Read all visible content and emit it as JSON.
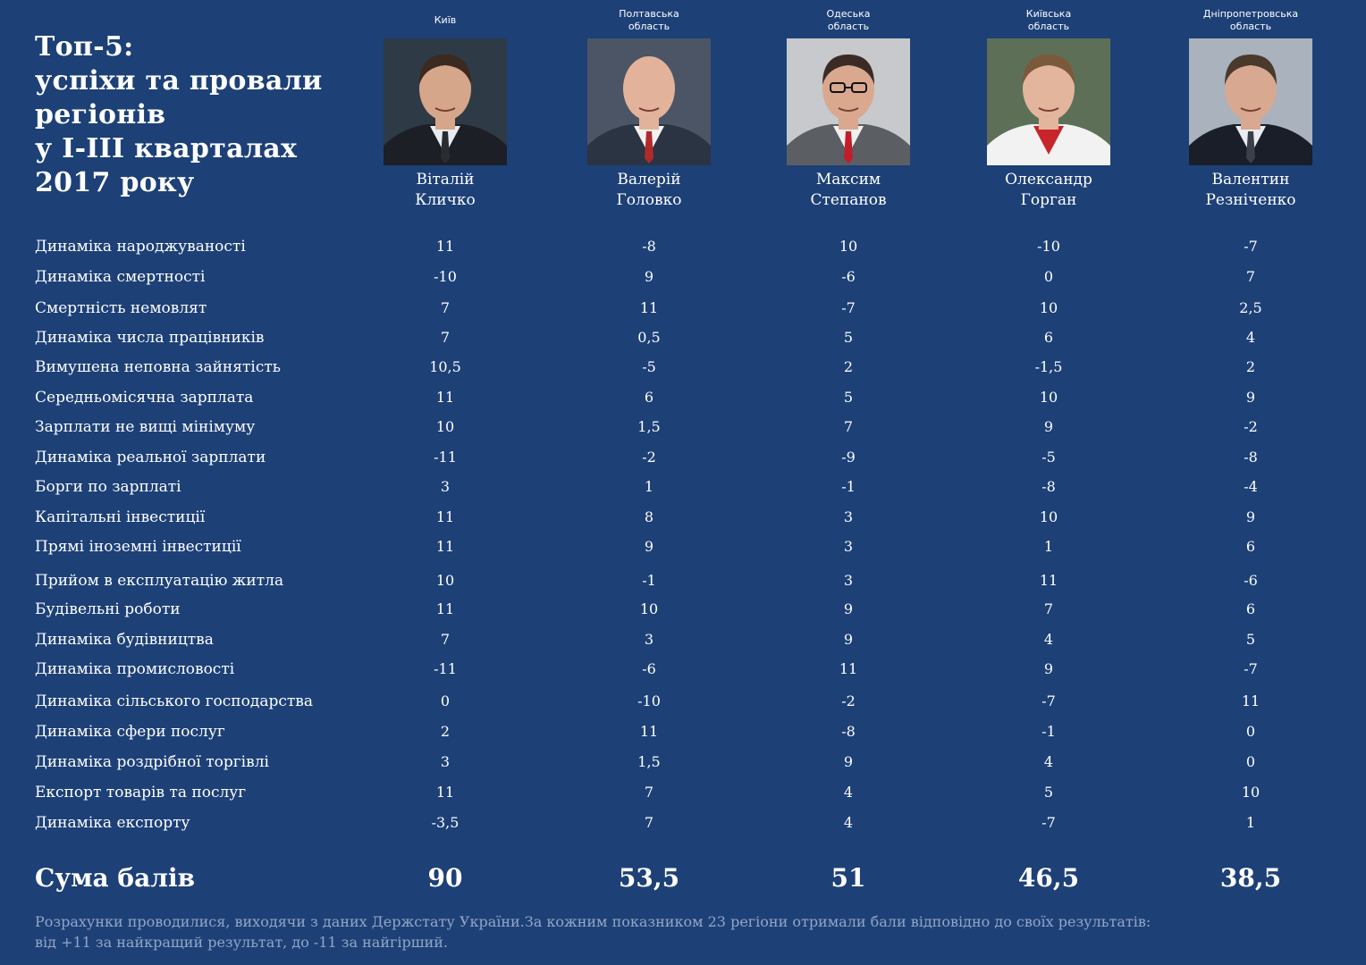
{
  "title": [
    "Топ-5:",
    "успіхи та провали",
    "регіонів",
    "у I-III кварталах",
    "2017 року"
  ],
  "colors": {
    "background": "#1d4077",
    "text": "#ffffff",
    "footnote": "#93a6c6"
  },
  "chart_data": {
    "type": "table",
    "title": "Топ-5: успіхи та провали регіонів у I-III кварталах 2017 року",
    "columns": [
      {
        "region": [
          "Київ"
        ],
        "name": [
          "Віталій",
          "Кличко"
        ],
        "photo": "portrait-klitschko",
        "total": "90"
      },
      {
        "region": [
          "Полтавська",
          "область"
        ],
        "name": [
          "Валерій",
          "Головко"
        ],
        "photo": "portrait-holovko",
        "total": "53,5"
      },
      {
        "region": [
          "Одеська",
          "область"
        ],
        "name": [
          "Максим",
          "Степанов"
        ],
        "photo": "portrait-stepanov",
        "total": "51"
      },
      {
        "region": [
          "Київська",
          "область"
        ],
        "name": [
          "Олександр",
          "Горган"
        ],
        "photo": "portrait-horhan",
        "total": "46,5"
      },
      {
        "region": [
          "Дніпропетровська",
          "область"
        ],
        "name": [
          "Валентин",
          "Резніченко"
        ],
        "photo": "portrait-reznichenko",
        "total": "38,5"
      }
    ],
    "rows": [
      {
        "label": "Динаміка народжуваності",
        "values": [
          "11",
          "-8",
          "10",
          "-10",
          "-7"
        ]
      },
      {
        "label": "Динаміка смертності",
        "values": [
          "-10",
          "9",
          "-6",
          "0",
          "7"
        ]
      },
      {
        "label": "Смертність немовлят",
        "values": [
          "7",
          "11",
          "-7",
          "10",
          "2,5"
        ]
      },
      {
        "label": "Динаміка числа працівників",
        "values": [
          "7",
          "0,5",
          "5",
          "6",
          "4"
        ]
      },
      {
        "label": "Вимушена неповна зайнятість",
        "values": [
          "10,5",
          "-5",
          "2",
          "-1,5",
          "2"
        ]
      },
      {
        "label": "Середньомісячна зарплата",
        "values": [
          "11",
          "6",
          "5",
          "10",
          "9"
        ]
      },
      {
        "label": "Зарплати не вищі мінімуму",
        "values": [
          "10",
          "1,5",
          "7",
          "9",
          "-2"
        ]
      },
      {
        "label": "Динаміка реальної зарплати",
        "values": [
          "-11",
          "-2",
          "-9",
          "-5",
          "-8"
        ]
      },
      {
        "label": "Борги по зарплаті",
        "values": [
          "3",
          "1",
          "-1",
          "-8",
          "-4"
        ]
      },
      {
        "label": "Капітальні інвестиції",
        "values": [
          "11",
          "8",
          "3",
          "10",
          "9"
        ]
      },
      {
        "label": "Прямі іноземні інвестиції",
        "values": [
          "11",
          "9",
          "3",
          "1",
          "6"
        ]
      },
      {
        "label": "Прийом в експлуатацію житла",
        "values": [
          "10",
          "-1",
          "3",
          "11",
          "-6"
        ]
      },
      {
        "label": "Будівельні роботи",
        "values": [
          "11",
          "10",
          "9",
          "7",
          "6"
        ]
      },
      {
        "label": "Динаміка будівництва",
        "values": [
          "7",
          "3",
          "9",
          "4",
          "5"
        ]
      },
      {
        "label": "Динаміка промисловості",
        "values": [
          "-11",
          "-6",
          "11",
          "9",
          "-7"
        ]
      },
      {
        "label": "Динаміка сільського господарства",
        "values": [
          "0",
          "-10",
          "-2",
          "-7",
          "11"
        ]
      },
      {
        "label": "Динаміка сфери послуг",
        "values": [
          "2",
          "11",
          "-8",
          "-1",
          "0"
        ]
      },
      {
        "label": "Динаміка роздрібної торгівлі",
        "values": [
          "3",
          "1,5",
          "9",
          "4",
          "0"
        ]
      },
      {
        "label": "Експорт товарів та послуг",
        "values": [
          "11",
          "7",
          "4",
          "5",
          "10"
        ]
      },
      {
        "label": "Динаміка експорту",
        "values": [
          "-3,5",
          "7",
          "4",
          "-7",
          "1"
        ]
      }
    ],
    "total_label": "Сума балів"
  },
  "footnote": [
    "Розрахунки проводилися, виходячи з даних Держстату України.За кожним показником 23 регіони отримали бали відповідно до своїх результатів:",
    "від +11 за найкращий результат, до -11 за найгірший."
  ]
}
